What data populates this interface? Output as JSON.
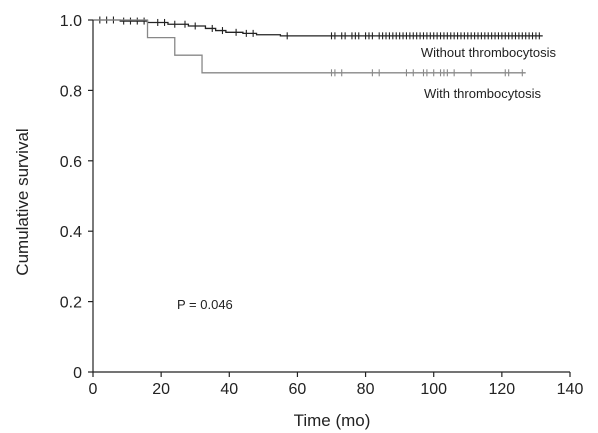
{
  "chart_data": {
    "type": "line",
    "xlabel": "Time (mo)",
    "ylabel": "Cumulative survival",
    "xlim": [
      0,
      140
    ],
    "ylim": [
      0,
      1.0
    ],
    "xticks": [
      0,
      20,
      40,
      60,
      80,
      100,
      120,
      140
    ],
    "yticks": [
      0,
      0.2,
      0.4,
      0.6,
      0.8,
      1.0
    ],
    "ytick_labels": [
      "0",
      "0.2",
      "0.4",
      "0.6",
      "0.8",
      "1.0"
    ],
    "grid": false,
    "annotation": "P = 0.046",
    "series": [
      {
        "name": "Without thrombocytosis",
        "color": "#222222",
        "steps": [
          [
            0,
            1.0
          ],
          [
            8,
            0.997
          ],
          [
            16,
            0.993
          ],
          [
            22,
            0.988
          ],
          [
            28,
            0.983
          ],
          [
            33,
            0.976
          ],
          [
            36,
            0.97
          ],
          [
            39,
            0.965
          ],
          [
            44,
            0.962
          ],
          [
            48,
            0.958
          ],
          [
            55,
            0.955
          ],
          [
            132,
            0.955
          ]
        ],
        "censor_x": [
          2,
          4,
          6,
          9,
          11,
          13,
          15,
          19,
          21,
          24,
          27,
          30,
          35,
          38,
          42,
          45,
          47,
          57,
          70,
          71,
          73,
          74,
          76,
          77,
          78,
          80,
          81,
          82,
          84,
          85,
          86,
          87,
          88,
          89,
          90,
          91,
          92,
          93,
          94,
          95,
          96,
          97,
          98,
          99,
          100,
          101,
          102,
          103,
          104,
          105,
          106,
          107,
          108,
          109,
          110,
          111,
          112,
          113,
          114,
          115,
          116,
          117,
          118,
          119,
          120,
          121,
          122,
          123,
          124,
          125,
          126,
          127,
          128,
          129,
          130,
          131
        ]
      },
      {
        "name": "With thrombocytosis",
        "color": "#888888",
        "steps": [
          [
            0,
            1.0
          ],
          [
            16,
            0.95
          ],
          [
            24,
            0.9
          ],
          [
            32,
            0.85
          ],
          [
            127,
            0.85
          ]
        ],
        "censor_x": [
          70,
          71,
          73,
          82,
          84,
          92,
          94,
          97,
          98,
          100,
          102,
          103,
          104,
          106,
          111,
          121,
          122,
          126
        ]
      }
    ]
  }
}
